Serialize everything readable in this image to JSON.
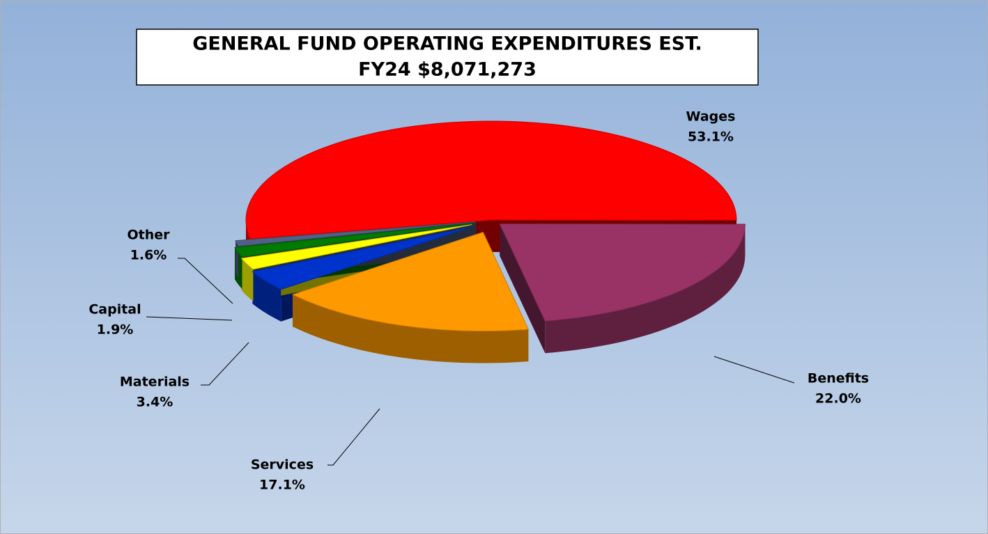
{
  "chart_data": {
    "type": "pie",
    "title": [
      "GENERAL FUND OPERATING EXPENDITURES EST.",
      "FY24 $8,071,273"
    ],
    "categories": [
      "Wages",
      "Benefits",
      "Services",
      "Materials",
      "Capital",
      "Other",
      null
    ],
    "values": [
      53.1,
      22.0,
      17.1,
      3.4,
      1.9,
      1.6,
      0.9
    ],
    "value_labels": [
      "53.1%",
      "22.0%",
      "17.1%",
      "3.4%",
      "1.9%",
      "1.6%",
      null
    ],
    "colors": [
      "#ff0000",
      "#993366",
      "#ff9900",
      "#0033cc",
      "#ffff00",
      "#007a00",
      "#4f6186"
    ]
  }
}
